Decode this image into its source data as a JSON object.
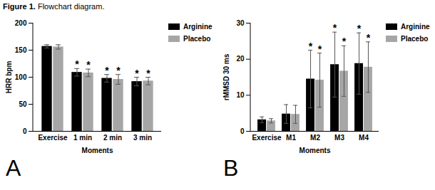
{
  "caption": {
    "label": "Figure 1.",
    "text": "Flowchart diagram."
  },
  "chart_data": [
    {
      "type": "bar",
      "panel": "A",
      "categories": [
        "Exercise",
        "1 min",
        "2 min",
        "3 min"
      ],
      "series": [
        {
          "name": "Arginine",
          "color": "#000000",
          "values": [
            157,
            109,
            98,
            92
          ],
          "errors": [
            3,
            7,
            7,
            8
          ]
        },
        {
          "name": "Placebo",
          "color": "#a6a6a6",
          "values": [
            156,
            108,
            96,
            93
          ],
          "errors": [
            4,
            7,
            9,
            7
          ]
        }
      ],
      "x_label": "Moments",
      "y_label": "HRR bpm",
      "ylim": [
        0,
        200
      ],
      "yticks": [
        0,
        50,
        100,
        150,
        200
      ],
      "legend": "top-right",
      "annotations": [
        {
          "text": "*",
          "category": "1 min",
          "series": "Arginine"
        },
        {
          "text": "*",
          "category": "1 min",
          "series": "Placebo"
        },
        {
          "text": "*",
          "category": "2 min",
          "series": "Arginine"
        },
        {
          "text": "*",
          "category": "2 min",
          "series": "Placebo"
        },
        {
          "text": "*",
          "category": "3 min",
          "series": "Arginine"
        },
        {
          "text": "*",
          "category": "3 min",
          "series": "Placebo"
        }
      ]
    },
    {
      "type": "bar",
      "panel": "B",
      "categories": [
        "Exercise",
        "M1",
        "M2",
        "M3",
        "M4"
      ],
      "series": [
        {
          "name": "Arginine",
          "color": "#000000",
          "values": [
            3.2,
            4.8,
            14.5,
            18.5,
            18.8
          ],
          "errors": [
            0.8,
            2.6,
            8,
            9,
            8.5
          ]
        },
        {
          "name": "Placebo",
          "color": "#a6a6a6",
          "values": [
            2.9,
            4.7,
            14.2,
            16.7,
            17.8
          ],
          "errors": [
            0.6,
            2.5,
            7.5,
            7,
            7
          ]
        }
      ],
      "x_label": "Moments",
      "y_label": "rMMSD 30 ms",
      "ylim": [
        0,
        30
      ],
      "yticks": [
        0,
        10,
        20,
        30
      ],
      "legend": "top-right",
      "annotations": [
        {
          "text": "*",
          "category": "M2",
          "series": "Arginine"
        },
        {
          "text": "*",
          "category": "M2",
          "series": "Placebo"
        },
        {
          "text": "*",
          "category": "M3",
          "series": "Arginine"
        },
        {
          "text": "*",
          "category": "M3",
          "series": "Placebo"
        },
        {
          "text": "*",
          "category": "M4",
          "series": "Arginine"
        },
        {
          "text": "*",
          "category": "M4",
          "series": "Placebo"
        }
      ]
    }
  ]
}
